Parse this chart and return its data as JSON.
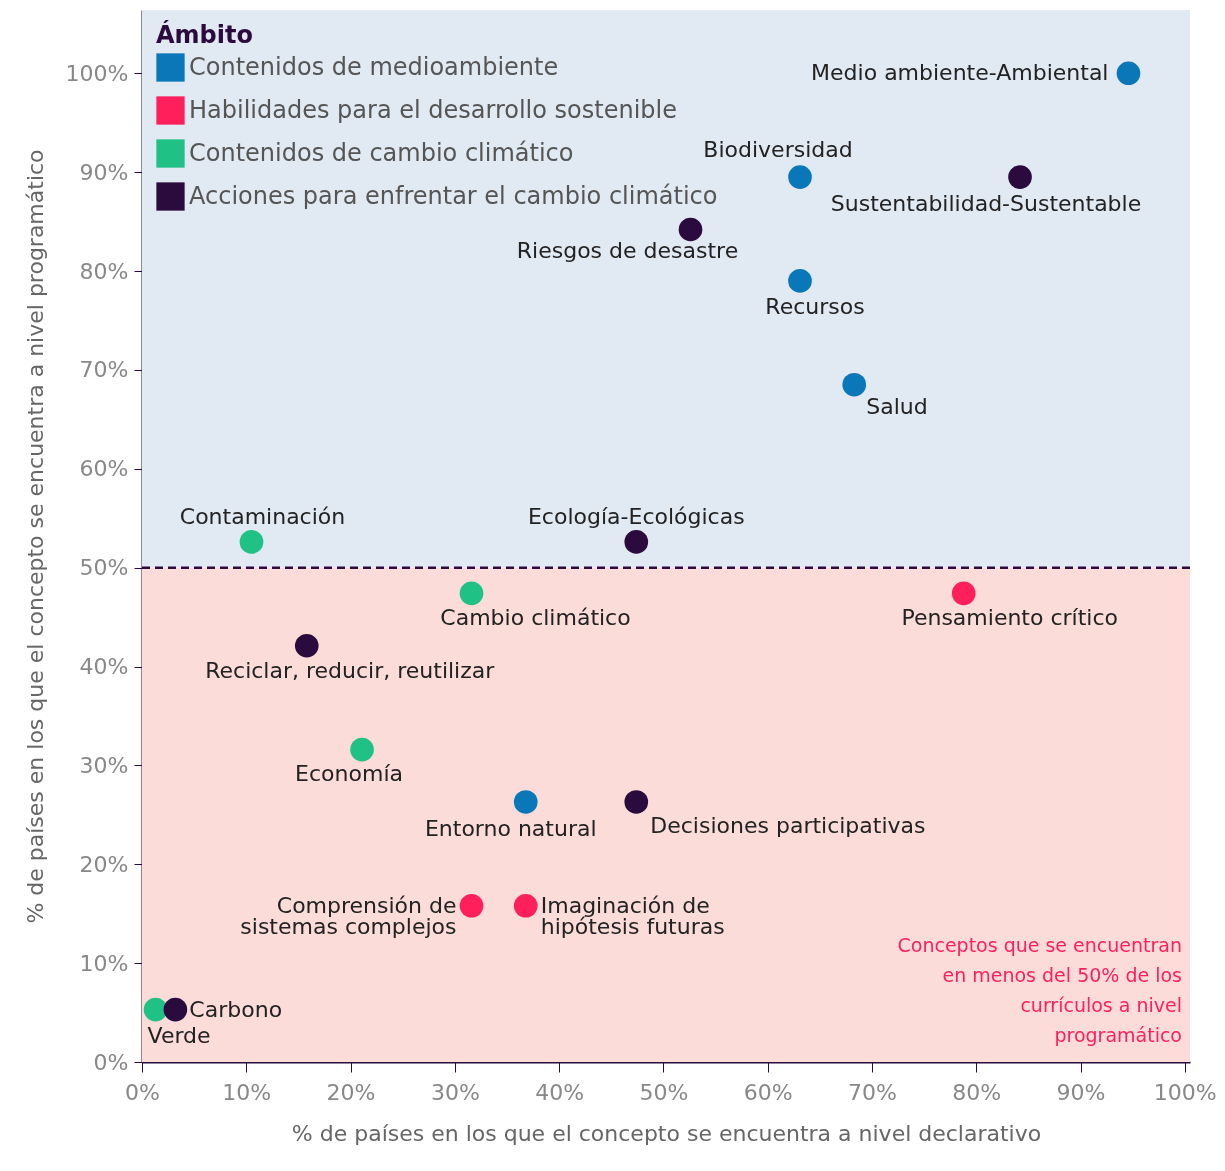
{
  "chart_data": {
    "type": "scatter",
    "xlabel": "% de países en los que el concepto se encuentra a nivel declarativo",
    "ylabel": "% de países en los que el concepto se encuentra a nivel programático",
    "legend_title": "Ámbito",
    "legend": "top left",
    "marker": "circle",
    "grid": false,
    "xlim": [
      0,
      100.5
    ],
    "ylim": [
      0,
      106.4
    ],
    "xticks": [
      {
        "value": 0,
        "label": "0%"
      },
      {
        "value": 10,
        "label": "10%"
      },
      {
        "value": 20,
        "label": "20%"
      },
      {
        "value": 30,
        "label": "30%"
      },
      {
        "value": 40,
        "label": "40%"
      },
      {
        "value": 50,
        "label": "50%"
      },
      {
        "value": 60,
        "label": "60%"
      },
      {
        "value": 70,
        "label": "70%"
      },
      {
        "value": 80,
        "label": "80%"
      },
      {
        "value": 90,
        "label": "90%"
      },
      {
        "value": 100,
        "label": "100%"
      }
    ],
    "yticks": [
      {
        "value": 0,
        "label": "0%"
      },
      {
        "value": 10,
        "label": "10%"
      },
      {
        "value": 20,
        "label": "20%"
      },
      {
        "value": 30,
        "label": "30%"
      },
      {
        "value": 40,
        "label": "40%"
      },
      {
        "value": 50,
        "label": "50%"
      },
      {
        "value": 60,
        "label": "60%"
      },
      {
        "value": 70,
        "label": "70%"
      },
      {
        "value": 80,
        "label": "80%"
      },
      {
        "value": 90,
        "label": "90%"
      },
      {
        "value": 100,
        "label": "100%"
      }
    ],
    "series": [
      {
        "name": "Contenidos de medioambiente",
        "color": "#0a78b8",
        "x": [
          94.6,
          63.1,
          63.1,
          68.3,
          36.8
        ],
        "values": [
          100,
          89.5,
          79.0,
          68.5,
          26.3
        ]
      },
      {
        "name": "Habilidades para el desarrollo sostenible",
        "color": "#ff1f5b",
        "x": [
          78.8,
          31.6,
          36.8
        ],
        "values": [
          47.4,
          15.8,
          15.8
        ]
      },
      {
        "name": "Contenidos de cambio climático",
        "color": "#1fc184",
        "x": [
          10.5,
          31.6,
          21.1,
          1.3
        ],
        "values": [
          52.6,
          47.4,
          31.6,
          5.3
        ]
      },
      {
        "name": "Acciones para enfrentar el cambio climático",
        "color": "#2b0a3d",
        "x": [
          84.2,
          52.6,
          47.4,
          15.8,
          47.4,
          3.2
        ],
        "values": [
          89.5,
          84.2,
          52.6,
          42.1,
          26.3,
          5.3
        ]
      }
    ],
    "ref_lines": [
      {
        "axis": "y",
        "value": 50,
        "color": "#2b0a3d",
        "line_style": "dashed"
      }
    ],
    "bands": [
      {
        "axis": "y",
        "from": 50,
        "to": 106.4,
        "color": "#e1e9f3"
      },
      {
        "axis": "y",
        "from": 0,
        "to": 50,
        "color": "#fbdcd9",
        "label": "Conceptos que se encuentran\nen menos del 50% de los\ncurrículos a nivel\nprogramático"
      }
    ],
    "annotations": [
      {
        "text": "Medio ambiente-Ambiental",
        "x": 94.6,
        "y": 100
      },
      {
        "text": "Biodiversidad",
        "x": 63.1,
        "y": 89.5
      },
      {
        "text": "Sustentabilidad-Sustentable",
        "x": 84.2,
        "y": 89.5
      },
      {
        "text": "Riesgos de desastre",
        "x": 52.6,
        "y": 84.2
      },
      {
        "text": "Recursos",
        "x": 63.1,
        "y": 79.0
      },
      {
        "text": "Salud",
        "x": 68.3,
        "y": 68.5
      },
      {
        "text": "Contaminación",
        "x": 10.5,
        "y": 52.6
      },
      {
        "text": "Ecología-Ecológicas",
        "x": 47.4,
        "y": 52.6
      },
      {
        "text": "Cambio climático",
        "x": 31.6,
        "y": 47.4
      },
      {
        "text": "Pensamiento crítico",
        "x": 78.8,
        "y": 47.4
      },
      {
        "text": "Reciclar, reducir, reutilizar",
        "x": 15.8,
        "y": 42.1
      },
      {
        "text": "Economía",
        "x": 21.1,
        "y": 31.6
      },
      {
        "text": "Entorno natural",
        "x": 36.8,
        "y": 26.3
      },
      {
        "text": "Decisiones participativas",
        "x": 47.4,
        "y": 26.3
      },
      {
        "text": "Comprensión de\nsistemas complejos",
        "x": 31.6,
        "y": 15.8
      },
      {
        "text": "Imaginación de\nhipótesis futuras",
        "x": 36.8,
        "y": 15.8
      },
      {
        "text": "Carbono",
        "x": 3.2,
        "y": 5.3
      },
      {
        "text": "Verde",
        "x": 1.3,
        "y": 5.3
      }
    ]
  }
}
